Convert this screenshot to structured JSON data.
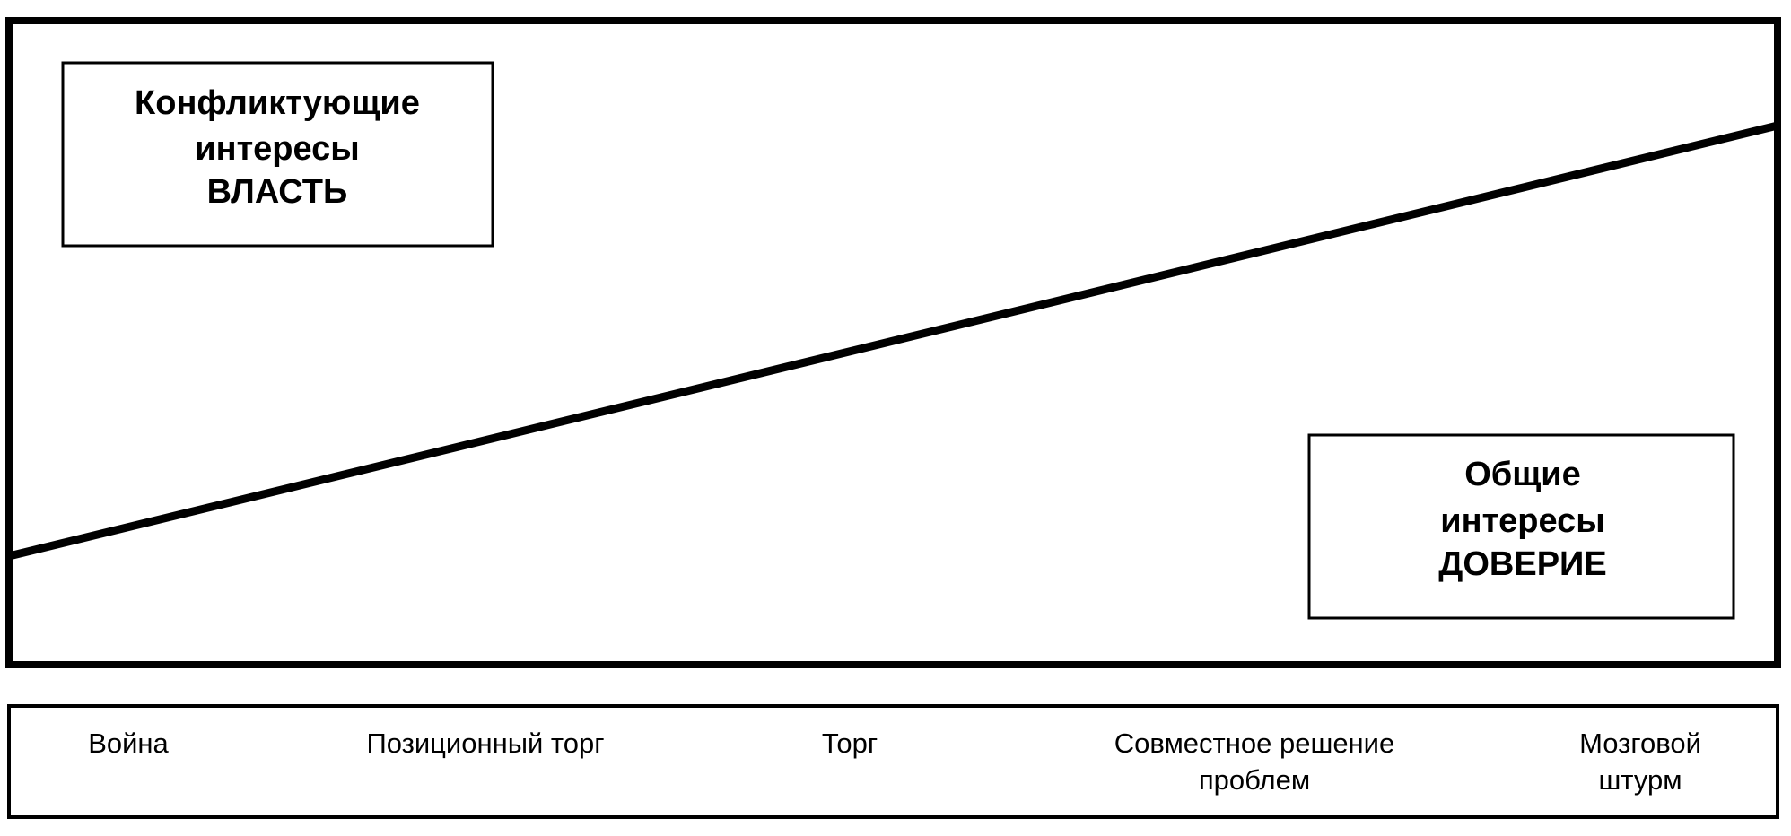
{
  "boxes": [
    {
      "lines": [
        "Конфликтующие",
        "интересы",
        "ВЛАСТЬ"
      ]
    },
    {
      "lines": [
        "Общие",
        "интересы",
        "ДОВЕРИЕ"
      ]
    }
  ],
  "stages": [
    {
      "lines": [
        "Война"
      ]
    },
    {
      "lines": [
        "Позиционный торг"
      ]
    },
    {
      "lines": [
        "Торг"
      ]
    },
    {
      "lines": [
        "Совместное решение",
        "проблем"
      ]
    },
    {
      "lines": [
        "Мозговой",
        "штурм"
      ]
    }
  ]
}
